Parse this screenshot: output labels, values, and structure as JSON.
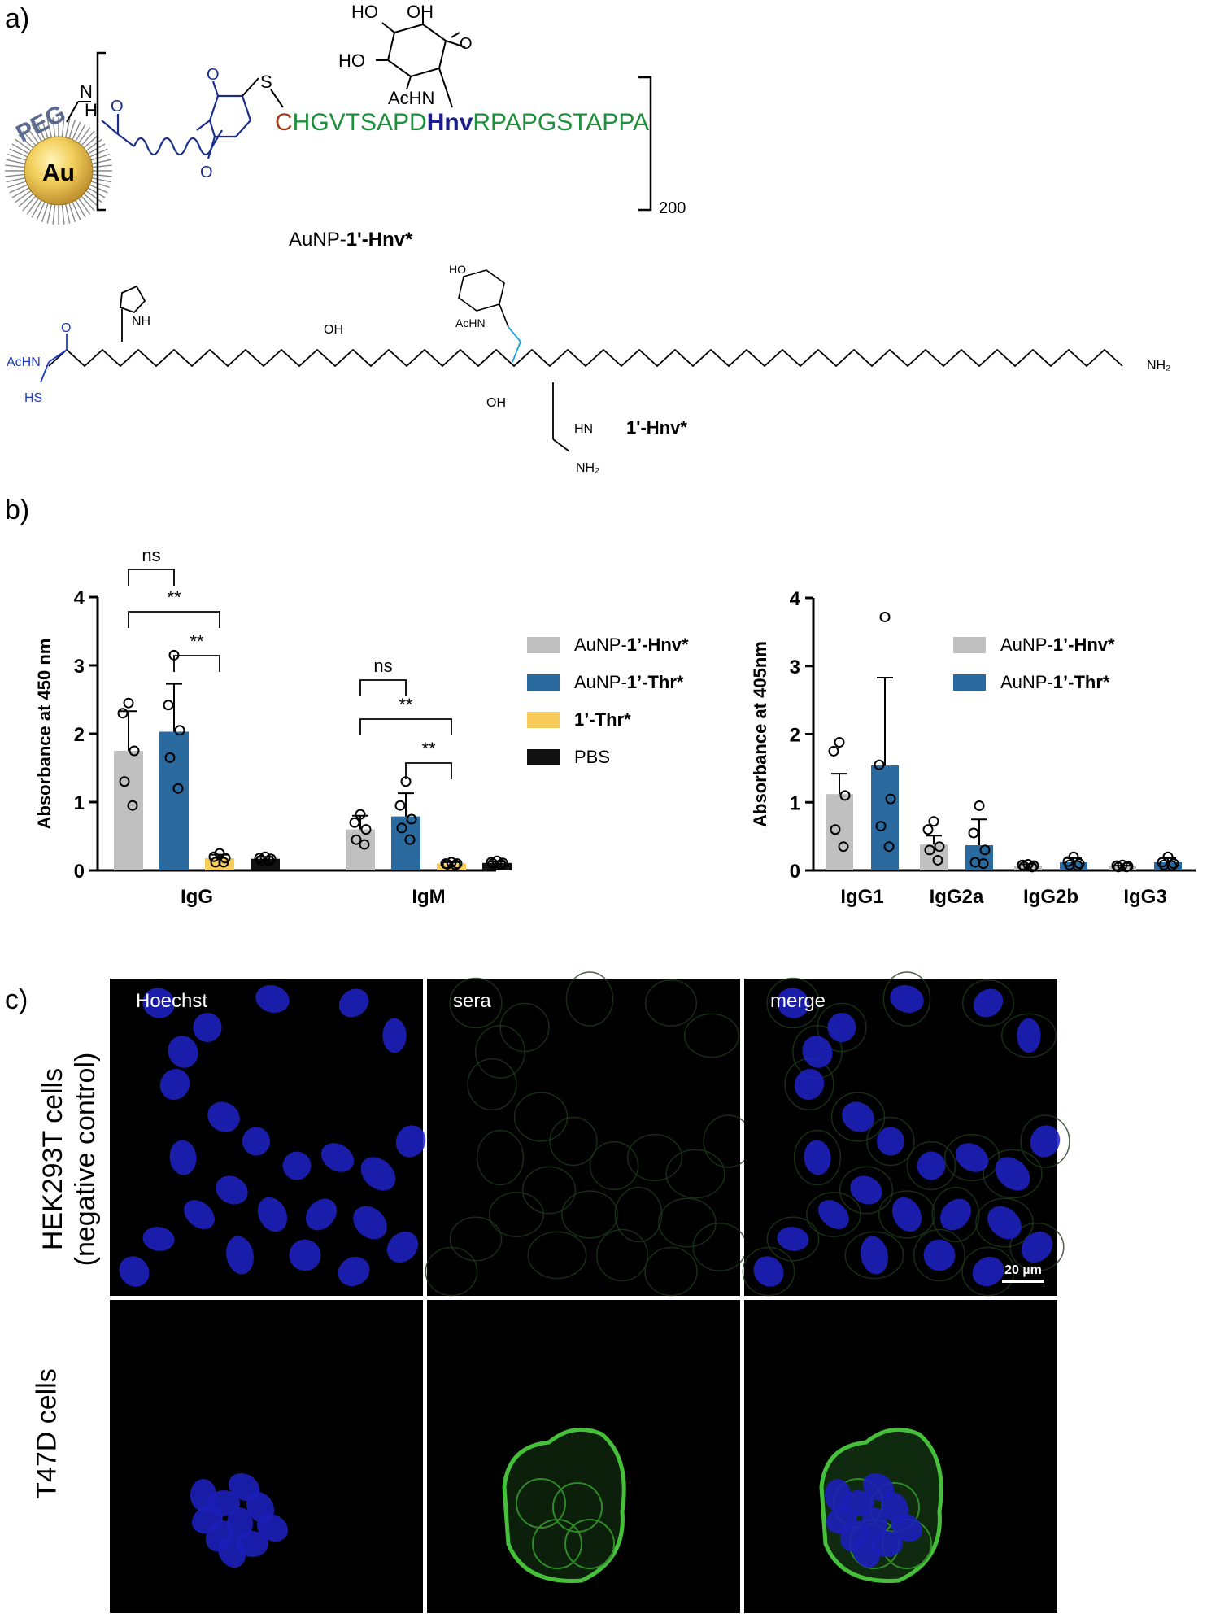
{
  "panel_a": {
    "letter": "a)",
    "au_label": "Au",
    "peg_label": "PEG",
    "sequence": {
      "cys": "C",
      "pre": "HGVTSAPD",
      "hnv": "Hnv",
      "post": "RPAPGSTAPPA"
    },
    "repeat_count": "200",
    "conjugate_name_prefix": "AuNP-",
    "conjugate_name_bold": "1'-Hnv*",
    "sugar_labels": {
      "ho1": "HO",
      "oh": "OH",
      "ho2": "HO",
      "achn": "AcHN",
      "o": "O"
    },
    "linker_labels": {
      "n": "N",
      "h": "H",
      "o1": "O",
      "o2": "O",
      "o3": "O",
      "s": "S"
    },
    "peptide_labels": {
      "achn": "AcHN",
      "hs": "HS",
      "nh": "NH",
      "oh": "OH",
      "nh2": "NH₂",
      "hn": "HN",
      "h2n": "NH₂",
      "o": "O",
      "n": "N",
      "h": "H",
      "achn2": "AcHN",
      "ho": "HO"
    },
    "peptide_name": "1'-Hnv*"
  },
  "panel_b": {
    "letter": "b)",
    "colors": {
      "hnv": "#c0c0c0",
      "thr": "#2a6a9e",
      "free": "#f6cb5a",
      "pbs": "#111111"
    },
    "left_legend": [
      {
        "prefix": "AuNP-",
        "bold": "1’-Hnv*",
        "color": "#c0c0c0"
      },
      {
        "prefix": "AuNP-",
        "bold": "1’-Thr*",
        "color": "#2a6a9e"
      },
      {
        "prefix": "",
        "bold": "1’-Thr*",
        "color": "#f6cb5a"
      },
      {
        "prefix": "PBS",
        "bold": "",
        "color": "#111111"
      }
    ],
    "right_legend": [
      {
        "prefix": "AuNP-",
        "bold": "1’-Hnv*",
        "color": "#c0c0c0"
      },
      {
        "prefix": "AuNP-",
        "bold": "1’-Thr*",
        "color": "#2a6a9e"
      }
    ],
    "sig_labels": {
      "ns1": "ns",
      "s1": "**",
      "s2": "**",
      "ns2": "ns",
      "s3": "**",
      "s4": "**"
    }
  },
  "chart_data": [
    {
      "type": "bar",
      "ylabel": "Absorbance at 450 nm",
      "xlabel": "",
      "ylim": [
        0,
        4
      ],
      "yticks": [
        0,
        1,
        2,
        3,
        4
      ],
      "categories": [
        "IgG",
        "IgM"
      ],
      "series": [
        {
          "name": "AuNP-1’-Hnv*",
          "values": [
            1.75,
            0.6
          ],
          "errors": [
            0.58,
            0.2
          ],
          "points": [
            [
              2.45,
              2.3,
              1.75,
              1.3,
              0.95
            ],
            [
              0.82,
              0.7,
              0.6,
              0.45,
              0.38
            ]
          ]
        },
        {
          "name": "AuNP-1’-Thr*",
          "values": [
            2.03,
            0.79
          ],
          "errors": [
            0.7,
            0.34
          ],
          "points": [
            [
              3.15,
              2.42,
              2.05,
              1.65,
              1.2
            ],
            [
              1.3,
              0.95,
              0.75,
              0.62,
              0.45
            ]
          ]
        },
        {
          "name": "1’-Thr*",
          "values": [
            0.18,
            0.1
          ],
          "errors": [
            0.05,
            0.02
          ],
          "points": [
            [
              0.25,
              0.2,
              0.18,
              0.12,
              0.12
            ],
            [
              0.12,
              0.1,
              0.1,
              0.09,
              0.08
            ]
          ]
        },
        {
          "name": "PBS",
          "values": [
            0.17,
            0.11
          ],
          "errors": [
            0.03,
            0.02
          ],
          "points": [
            [
              0.2,
              0.18,
              0.17,
              0.15,
              0.14
            ],
            [
              0.14,
              0.12,
              0.11,
              0.1,
              0.09
            ]
          ]
        }
      ],
      "significance": [
        {
          "label": "ns",
          "category": "IgG",
          "pair": [
            0,
            1
          ]
        },
        {
          "label": "**",
          "category": "IgG",
          "pair": [
            0,
            2
          ]
        },
        {
          "label": "**",
          "category": "IgG",
          "pair": [
            1,
            2
          ]
        },
        {
          "label": "ns",
          "category": "IgM",
          "pair": [
            0,
            1
          ]
        },
        {
          "label": "**",
          "category": "IgM",
          "pair": [
            0,
            2
          ]
        },
        {
          "label": "**",
          "category": "IgM",
          "pair": [
            1,
            2
          ]
        }
      ]
    },
    {
      "type": "bar",
      "ylabel": "Absorbance at 405nm",
      "xlabel": "",
      "ylim": [
        0,
        4
      ],
      "yticks": [
        0,
        1,
        2,
        3,
        4
      ],
      "categories": [
        "IgG1",
        "IgG2a",
        "IgG2b",
        "IgG3"
      ],
      "series": [
        {
          "name": "AuNP-1’-Hnv*",
          "values": [
            1.12,
            0.38,
            0.07,
            0.06
          ],
          "errors": [
            0.3,
            0.13,
            0.02,
            0.01
          ],
          "points": [
            [
              1.88,
              1.75,
              1.1,
              0.6,
              0.35
            ],
            [
              0.72,
              0.6,
              0.35,
              0.3,
              0.15
            ],
            [
              0.09,
              0.08,
              0.07,
              0.06,
              0.05
            ],
            [
              0.08,
              0.07,
              0.06,
              0.05,
              0.05
            ]
          ]
        },
        {
          "name": "AuNP-1’-Thr*",
          "values": [
            1.54,
            0.37,
            0.12,
            0.12
          ],
          "errors": [
            1.29,
            0.38,
            0.06,
            0.06
          ],
          "points": [
            [
              3.72,
              1.55,
              1.05,
              0.65,
              0.35
            ],
            [
              0.95,
              0.55,
              0.3,
              0.12,
              0.1
            ],
            [
              0.2,
              0.13,
              0.1,
              0.08,
              0.07
            ],
            [
              0.2,
              0.12,
              0.1,
              0.08,
              0.07
            ]
          ]
        }
      ]
    }
  ],
  "panel_c": {
    "letter": "c)",
    "columns": [
      "Hoechst",
      "sera",
      "merge"
    ],
    "rows": [
      {
        "line1": "HEK293T cells",
        "line2": "(negative control)"
      },
      {
        "line1": "T47D cells",
        "line2": ""
      }
    ],
    "scale_bar": "20 µm"
  }
}
